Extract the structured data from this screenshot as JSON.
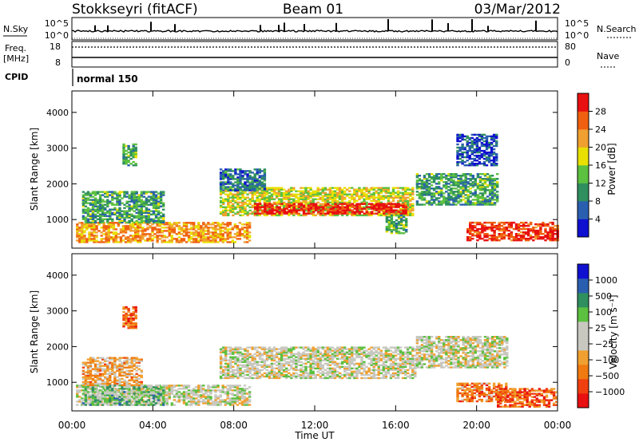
{
  "header": {
    "station": "Stokkseyri (fitACF)",
    "beam": "Beam 01",
    "date": "03/Mar/2012"
  },
  "panels": {
    "nsky": {
      "label": "N.Sky",
      "tick_top": "10^5",
      "tick_bottom": "10^0",
      "right_label": "N.Search",
      "right_tick_top": "10^5",
      "right_tick_bottom": "10^0"
    },
    "freq": {
      "label_line1": "Freq.",
      "label_line2": "[MHz]",
      "tick_top": "18",
      "tick_bottom": "8",
      "right_label": "Nave",
      "right_tick_top": "80",
      "right_tick_bottom": "0"
    },
    "cpid": {
      "label": "CPID",
      "mode_text": "normal 150"
    }
  },
  "colors": {
    "power": [
      "#1010d0",
      "#2a5fb0",
      "#2f8f5f",
      "#5cc040",
      "#e8e000",
      "#f0a030",
      "#f06010",
      "#e81010"
    ],
    "velocity": [
      "#e81010",
      "#f04010",
      "#f07a10",
      "#f0a030",
      "#c8c8c0",
      "#c8c8c0",
      "#5cc040",
      "#2f8f5f",
      "#2a5fb0",
      "#1010d0"
    ]
  },
  "chart_data": [
    {
      "type": "heatmap",
      "name": "power-panel",
      "ylabel": "Slant Range [km]",
      "ylim": [
        200,
        4600
      ],
      "yticks": [
        "1000",
        "2000",
        "3000",
        "4000"
      ],
      "xticks": [
        "00:00",
        "04:00",
        "08:00",
        "12:00",
        "16:00",
        "20:00",
        "00:00"
      ],
      "colorbar": {
        "label": "Power [dB]",
        "ticks": [
          "4",
          "8",
          "12",
          "16",
          "20",
          "24",
          "28"
        ]
      },
      "regions": [
        {
          "t0": 0.2,
          "t1": 8.8,
          "r0": 350,
          "r1": 900,
          "level": 0.7
        },
        {
          "t0": 0.5,
          "t1": 4.5,
          "r0": 900,
          "r1": 1800,
          "level": 0.35
        },
        {
          "t0": 2.5,
          "t1": 3.2,
          "r0": 2500,
          "r1": 3100,
          "level": 0.4
        },
        {
          "t0": 7.3,
          "t1": 16.8,
          "r0": 1100,
          "r1": 1900,
          "level": 0.55
        },
        {
          "t0": 9.0,
          "t1": 16.5,
          "r0": 1150,
          "r1": 1450,
          "level": 0.95
        },
        {
          "t0": 7.3,
          "t1": 9.5,
          "r0": 1800,
          "r1": 2400,
          "level": 0.25
        },
        {
          "t0": 17.0,
          "t1": 21.0,
          "r0": 1400,
          "r1": 2300,
          "level": 0.35
        },
        {
          "t0": 19.5,
          "t1": 24.0,
          "r0": 400,
          "r1": 900,
          "level": 0.9
        },
        {
          "t0": 15.5,
          "t1": 16.5,
          "r0": 600,
          "r1": 1100,
          "level": 0.4
        },
        {
          "t0": 19.0,
          "t1": 21.0,
          "r0": 2500,
          "r1": 3400,
          "level": 0.15
        }
      ]
    },
    {
      "type": "heatmap",
      "name": "velocity-panel",
      "ylabel": "Slant Range [km]",
      "xlabel": "Time UT",
      "ylim": [
        200,
        4600
      ],
      "yticks": [
        "1000",
        "2000",
        "3000",
        "4000"
      ],
      "xticks": [
        "00:00",
        "04:00",
        "08:00",
        "12:00",
        "16:00",
        "20:00",
        "00:00"
      ],
      "colorbar": {
        "label": "Velocity [m s⁻¹]",
        "ticks": [
          "1000",
          "500",
          "100",
          "25",
          "−25",
          "−100",
          "−500",
          "−1000"
        ]
      },
      "regions": [
        {
          "t0": 0.2,
          "t1": 8.8,
          "r0": 350,
          "r1": 900,
          "level": 0.5
        },
        {
          "t0": 0.5,
          "t1": 4.5,
          "r0": 350,
          "r1": 900,
          "level": 0.65
        },
        {
          "t0": 2.5,
          "t1": 3.2,
          "r0": 2500,
          "r1": 3100,
          "level": 0.2
        },
        {
          "t0": 7.3,
          "t1": 17.0,
          "r0": 1100,
          "r1": 2000,
          "level": 0.5
        },
        {
          "t0": 17.0,
          "t1": 21.5,
          "r0": 1400,
          "r1": 2300,
          "level": 0.5
        },
        {
          "t0": 19.0,
          "t1": 21.5,
          "r0": 450,
          "r1": 950,
          "level": 0.25
        },
        {
          "t0": 21.0,
          "t1": 24.0,
          "r0": 300,
          "r1": 800,
          "level": 0.2
        },
        {
          "t0": 0.5,
          "t1": 3.5,
          "r0": 900,
          "r1": 1700,
          "level": 0.35
        }
      ]
    }
  ]
}
